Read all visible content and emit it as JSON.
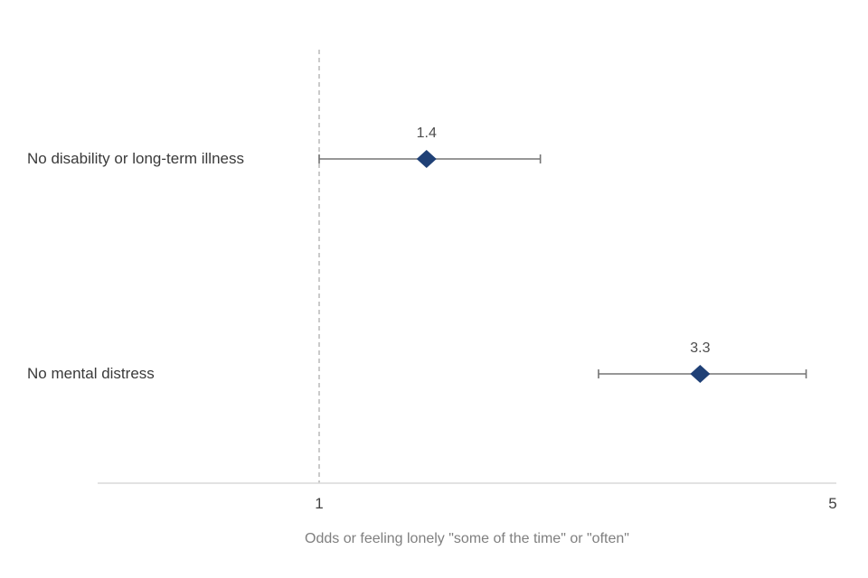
{
  "chart_data": {
    "type": "scatter",
    "subtype": "forest-plot-odds-ratios",
    "title": "",
    "xlabel": "Odds or feeling lonely \"some of the time\" or \"often\"",
    "ylabel": "",
    "x_scale": "log",
    "xlim": [
      0.5,
      5.05
    ],
    "reference_line": 1,
    "grid": false,
    "legend": "none",
    "x_ticks": [
      {
        "value": 1,
        "label": "1"
      },
      {
        "value": 5,
        "label": "5"
      }
    ],
    "rows": [
      {
        "label": "No disability or long-term illness",
        "value": 1.4,
        "value_label": "1.4",
        "ci_low": 1.0,
        "ci_high": 2.0
      },
      {
        "label": "No mental distress",
        "value": 3.3,
        "value_label": "3.3",
        "ci_low": 2.4,
        "ci_high": 4.6
      }
    ],
    "colors": {
      "marker": "#1f4076",
      "error_bar": "#757575",
      "reference_line": "#b3b3b3",
      "axis_line": "#d9d9d9",
      "category_text": "#3a3a3a",
      "value_text": "#4d4d4d",
      "tick_text": "#404040",
      "axis_title_text": "#7f7f7f"
    }
  }
}
